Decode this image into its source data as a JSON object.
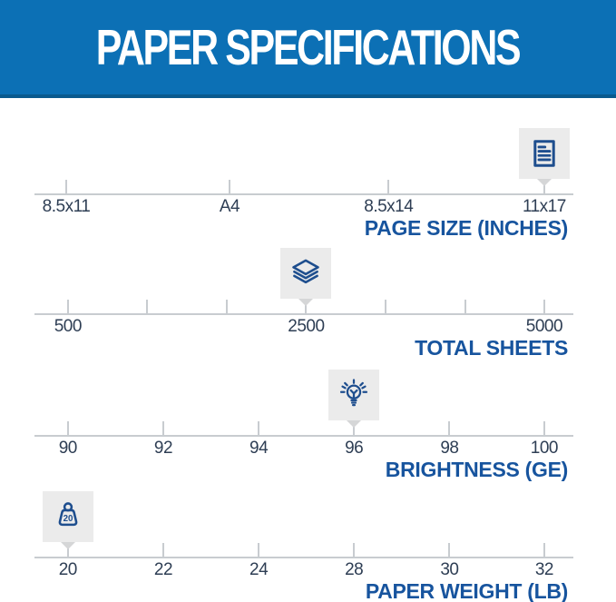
{
  "header": {
    "title": "PAPER SPECIFICATIONS"
  },
  "colors": {
    "header_bg": "#0c70b5",
    "header_edge": "#0a5a8e",
    "header_text": "#ffffff",
    "title_blue": "#17549e",
    "tick_ink": "#2e3e54",
    "icon_navy": "#1e4e8e",
    "axis_gray": "#c8ccd0",
    "marker_bg": "#ebebeb",
    "marker_pointer": "#d5d6d7"
  },
  "chart_data": [
    {
      "type": "scale",
      "title": "PAGE SIZE (INCHES)",
      "icon": "document-icon",
      "selected_value": "11x17",
      "marker_pos": 0.946,
      "ticks": [
        {
          "label": "8.5x11",
          "pos": 0.059
        },
        {
          "label": "A4",
          "pos": 0.362
        },
        {
          "label": "8.5x14",
          "pos": 0.657
        },
        {
          "label": "11x17",
          "pos": 0.946
        }
      ]
    },
    {
      "type": "scale",
      "title": "TOTAL SHEETS",
      "icon": "sheets-icon",
      "selected_value": "2500",
      "marker_pos": 0.504,
      "ticks": [
        {
          "label": "500",
          "pos": 0.062
        },
        {
          "label": "",
          "pos": 0.209
        },
        {
          "label": "",
          "pos": 0.357
        },
        {
          "label": "2500",
          "pos": 0.504
        },
        {
          "label": "",
          "pos": 0.651
        },
        {
          "label": "",
          "pos": 0.799
        },
        {
          "label": "5000",
          "pos": 0.946
        }
      ]
    },
    {
      "type": "scale",
      "title": "BRIGHTNESS (GE)",
      "icon": "lightbulb-icon",
      "selected_value": "96",
      "marker_pos": 0.593,
      "ticks": [
        {
          "label": "90",
          "pos": 0.062
        },
        {
          "label": "92",
          "pos": 0.239
        },
        {
          "label": "94",
          "pos": 0.416
        },
        {
          "label": "96",
          "pos": 0.593
        },
        {
          "label": "98",
          "pos": 0.77
        },
        {
          "label": "100",
          "pos": 0.946
        }
      ]
    },
    {
      "type": "scale",
      "title": "PAPER WEIGHT (LB)",
      "icon": "weight-icon",
      "selected_value": "20",
      "icon_text": "20",
      "marker_pos": 0.062,
      "ticks": [
        {
          "label": "20",
          "pos": 0.062
        },
        {
          "label": "22",
          "pos": 0.239
        },
        {
          "label": "24",
          "pos": 0.416
        },
        {
          "label": "28",
          "pos": 0.593
        },
        {
          "label": "30",
          "pos": 0.77
        },
        {
          "label": "32",
          "pos": 0.946
        }
      ]
    }
  ]
}
